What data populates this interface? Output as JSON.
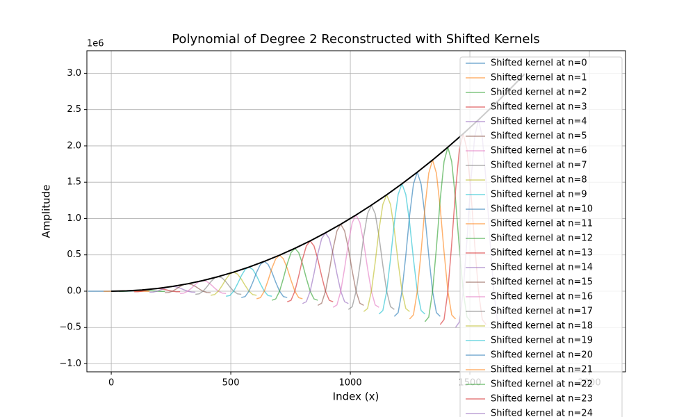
{
  "chart_data": {
    "type": "line",
    "title": "Polynomial of Degree 2 Reconstructed with Shifted Kernels",
    "x_label": "Index (x)",
    "y_label": "Amplitude",
    "y_offset_text": "1e6",
    "xlim": [
      -102,
      2151
    ],
    "ylim": [
      -1.11,
      3.31
    ],
    "xticks": [
      0,
      500,
      1000,
      1500,
      2000
    ],
    "yticks": [
      {
        "value": -1,
        "label": "−1.0"
      },
      {
        "value": -0.5,
        "label": "−0.5"
      },
      {
        "value": 0,
        "label": "0.0"
      },
      0.5,
      {
        "value": 1,
        "label": "1.0"
      },
      1.5,
      {
        "value": 2,
        "label": "2.0"
      },
      2.5,
      {
        "value": 3,
        "label": "3.0"
      }
    ],
    "grid": true,
    "legend": "upper right",
    "line_alpha": 0.6,
    "series": [
      {
        "name": "Shifted kernel at n=0",
        "color": "#1f77b4",
        "x": [
          -96,
          -80,
          -64,
          -48,
          -32,
          -16,
          0,
          16,
          32,
          48,
          64,
          80,
          96
        ],
        "values": [
          0,
          0,
          0,
          0,
          0,
          0,
          0,
          0,
          0,
          0,
          0,
          0,
          0
        ]
      },
      {
        "name": "Shifted kernel at n=1",
        "color": "#ff7f0e",
        "x": [
          -32,
          -16,
          0,
          16,
          32,
          48,
          64,
          80,
          96,
          112,
          128,
          144,
          160
        ],
        "values": [
          -0.001,
          -0.001,
          0,
          0.001,
          0.003,
          0.004,
          0.004,
          0.004,
          0.003,
          0.001,
          0,
          -0.001,
          -0.001
        ]
      },
      {
        "name": "Shifted kernel at n=2",
        "color": "#2ca02c",
        "x": [
          32,
          48,
          64,
          80,
          96,
          112,
          128,
          144,
          160,
          176,
          192,
          208,
          224
        ],
        "values": [
          -0.003,
          -0.003,
          0,
          0.005,
          0.01,
          0.014,
          0.016,
          0.014,
          0.01,
          0.005,
          0,
          -0.003,
          -0.003
        ]
      },
      {
        "name": "Shifted kernel at n=3",
        "color": "#d62728",
        "x": [
          96,
          112,
          128,
          144,
          160,
          176,
          192,
          208,
          224,
          240,
          256,
          272,
          288
        ],
        "values": [
          -0.008,
          -0.007,
          0,
          0.011,
          0.024,
          0.033,
          0.037,
          0.033,
          0.024,
          0.011,
          0,
          -0.007,
          -0.008
        ]
      },
      {
        "name": "Shifted kernel at n=4",
        "color": "#9467bd",
        "x": [
          160,
          176,
          192,
          208,
          224,
          240,
          256,
          272,
          288,
          304,
          320,
          336,
          352
        ],
        "values": [
          -0.014,
          -0.012,
          0,
          0.02,
          0.042,
          0.059,
          0.066,
          0.059,
          0.042,
          0.02,
          0,
          -0.012,
          -0.014
        ]
      },
      {
        "name": "Shifted kernel at n=5",
        "color": "#8c564b",
        "x": [
          224,
          240,
          256,
          272,
          288,
          304,
          320,
          336,
          352,
          368,
          384,
          400,
          416
        ],
        "values": [
          -0.022,
          -0.018,
          0,
          0.031,
          0.065,
          0.092,
          0.102,
          0.092,
          0.065,
          0.031,
          0,
          -0.018,
          -0.022
        ]
      },
      {
        "name": "Shifted kernel at n=6",
        "color": "#e377c2",
        "x": [
          288,
          304,
          320,
          336,
          352,
          368,
          384,
          400,
          416,
          432,
          448,
          464,
          480
        ],
        "values": [
          -0.031,
          -0.026,
          0,
          0.044,
          0.094,
          0.132,
          0.147,
          0.132,
          0.094,
          0.044,
          0,
          -0.026,
          -0.031
        ]
      },
      {
        "name": "Shifted kernel at n=7",
        "color": "#7f7f7f",
        "x": [
          352,
          368,
          384,
          400,
          416,
          432,
          448,
          464,
          480,
          496,
          512,
          528,
          544
        ],
        "values": [
          -0.043,
          -0.036,
          0,
          0.06,
          0.128,
          0.181,
          0.201,
          0.181,
          0.128,
          0.06,
          0,
          -0.036,
          -0.043
        ]
      },
      {
        "name": "Shifted kernel at n=8",
        "color": "#bcbd22",
        "x": [
          416,
          432,
          448,
          464,
          480,
          496,
          512,
          528,
          544,
          560,
          576,
          592,
          608
        ],
        "values": [
          -0.056,
          -0.047,
          0,
          0.079,
          0.167,
          0.236,
          0.262,
          0.236,
          0.167,
          0.079,
          0,
          -0.047,
          -0.056
        ]
      },
      {
        "name": "Shifted kernel at n=9",
        "color": "#17becf",
        "x": [
          480,
          496,
          512,
          528,
          544,
          560,
          576,
          592,
          608,
          624,
          640,
          656,
          672
        ],
        "values": [
          -0.07,
          -0.06,
          0,
          0.1,
          0.211,
          0.299,
          0.332,
          0.299,
          0.211,
          0.1,
          0,
          -0.06,
          -0.07
        ]
      },
      {
        "name": "Shifted kernel at n=10",
        "color": "#1f77b4",
        "x": [
          544,
          560,
          576,
          592,
          608,
          624,
          640,
          656,
          672,
          688,
          704,
          720,
          736
        ],
        "values": [
          -0.087,
          -0.074,
          0,
          0.123,
          0.261,
          0.369,
          0.41,
          0.369,
          0.261,
          0.123,
          0,
          -0.074,
          -0.087
        ]
      },
      {
        "name": "Shifted kernel at n=11",
        "color": "#ff7f0e",
        "x": [
          608,
          624,
          640,
          656,
          672,
          688,
          704,
          720,
          736,
          752,
          768,
          784,
          800
        ],
        "values": [
          -0.105,
          -0.089,
          0,
          0.149,
          0.316,
          0.446,
          0.496,
          0.446,
          0.316,
          0.149,
          0,
          -0.089,
          -0.105
        ]
      },
      {
        "name": "Shifted kernel at n=12",
        "color": "#2ca02c",
        "x": [
          672,
          688,
          704,
          720,
          736,
          752,
          768,
          784,
          800,
          816,
          832,
          848,
          864
        ],
        "values": [
          -0.125,
          -0.106,
          0,
          0.177,
          0.376,
          0.531,
          0.59,
          0.531,
          0.376,
          0.177,
          0,
          -0.106,
          -0.125
        ]
      },
      {
        "name": "Shifted kernel at n=13",
        "color": "#d62728",
        "x": [
          736,
          752,
          768,
          784,
          800,
          816,
          832,
          848,
          864,
          880,
          896,
          912,
          928
        ],
        "values": [
          -0.147,
          -0.125,
          0,
          0.208,
          0.441,
          0.623,
          0.692,
          0.623,
          0.441,
          0.208,
          0,
          -0.125,
          -0.147
        ]
      },
      {
        "name": "Shifted kernel at n=14",
        "color": "#9467bd",
        "x": [
          800,
          816,
          832,
          848,
          864,
          880,
          896,
          912,
          928,
          944,
          960,
          976,
          992
        ],
        "values": [
          -0.17,
          -0.145,
          0,
          0.241,
          0.512,
          0.723,
          0.803,
          0.723,
          0.512,
          0.241,
          0,
          -0.145,
          -0.17
        ]
      },
      {
        "name": "Shifted kernel at n=15",
        "color": "#8c564b",
        "x": [
          864,
          880,
          896,
          912,
          928,
          944,
          960,
          976,
          992,
          1008,
          1024,
          1040,
          1056
        ],
        "values": [
          -0.195,
          -0.166,
          0,
          0.277,
          0.587,
          0.83,
          0.922,
          0.83,
          0.587,
          0.277,
          0,
          -0.166,
          -0.195
        ]
      },
      {
        "name": "Shifted kernel at n=16",
        "color": "#e377c2",
        "x": [
          928,
          944,
          960,
          976,
          992,
          1008,
          1024,
          1040,
          1056,
          1072,
          1088,
          1104,
          1120
        ],
        "values": [
          -0.222,
          -0.189,
          0,
          0.315,
          0.668,
          0.944,
          1.049,
          0.944,
          0.668,
          0.315,
          0,
          -0.189,
          -0.222
        ]
      },
      {
        "name": "Shifted kernel at n=17",
        "color": "#7f7f7f",
        "x": [
          992,
          1008,
          1024,
          1040,
          1056,
          1072,
          1088,
          1104,
          1120,
          1136,
          1152,
          1168,
          1184
        ],
        "values": [
          -0.251,
          -0.213,
          0,
          0.355,
          0.754,
          1.066,
          1.184,
          1.066,
          0.754,
          0.355,
          0,
          -0.213,
          -0.251
        ]
      },
      {
        "name": "Shifted kernel at n=18",
        "color": "#bcbd22",
        "x": [
          1056,
          1072,
          1088,
          1104,
          1120,
          1136,
          1152,
          1168,
          1184,
          1200,
          1216,
          1232,
          1248
        ],
        "values": [
          -0.281,
          -0.239,
          0,
          0.398,
          0.845,
          1.194,
          1.327,
          1.194,
          0.845,
          0.398,
          0,
          -0.239,
          -0.281
        ]
      },
      {
        "name": "Shifted kernel at n=19",
        "color": "#17becf",
        "x": [
          1120,
          1136,
          1152,
          1168,
          1184,
          1200,
          1216,
          1232,
          1248,
          1264,
          1280,
          1296,
          1312
        ],
        "values": [
          -0.314,
          -0.266,
          0,
          0.444,
          0.942,
          1.331,
          1.479,
          1.331,
          0.942,
          0.444,
          0,
          -0.266,
          -0.314
        ]
      },
      {
        "name": "Shifted kernel at n=20",
        "color": "#1f77b4",
        "x": [
          1184,
          1200,
          1216,
          1232,
          1248,
          1264,
          1280,
          1296,
          1312,
          1328,
          1344,
          1360,
          1376
        ],
        "values": [
          -0.347,
          -0.295,
          0,
          0.491,
          1.043,
          1.474,
          1.638,
          1.474,
          1.043,
          0.491,
          0,
          -0.295,
          -0.347
        ]
      },
      {
        "name": "Shifted kernel at n=21",
        "color": "#ff7f0e",
        "x": [
          1248,
          1264,
          1280,
          1296,
          1312,
          1328,
          1344,
          1360,
          1376,
          1392,
          1408,
          1424,
          1440
        ],
        "values": [
          -0.383,
          -0.325,
          0,
          0.542,
          1.15,
          1.625,
          1.806,
          1.625,
          1.15,
          0.542,
          0,
          -0.325,
          -0.383
        ]
      },
      {
        "name": "Shifted kernel at n=22",
        "color": "#2ca02c",
        "x": [
          1312,
          1328,
          1344,
          1360,
          1376,
          1392,
          1408,
          1424,
          1440,
          1456,
          1472,
          1488,
          1504
        ],
        "values": [
          -0.42,
          -0.357,
          0,
          0.595,
          1.263,
          1.784,
          1.982,
          1.784,
          1.263,
          0.595,
          0,
          -0.357,
          -0.42
        ]
      },
      {
        "name": "Shifted kernel at n=23",
        "color": "#d62728",
        "x": [
          1376,
          1392,
          1408,
          1424,
          1440,
          1456,
          1472,
          1488,
          1504,
          1520,
          1536,
          1552,
          1568
        ],
        "values": [
          -0.459,
          -0.39,
          0,
          0.65,
          1.38,
          1.95,
          2.167,
          1.95,
          1.38,
          0.65,
          0,
          -0.39,
          -0.459
        ]
      },
      {
        "name": "Shifted kernel at n=24",
        "color": "#9467bd",
        "x": [
          1440,
          1456,
          1472,
          1488,
          1504,
          1520,
          1536,
          1552,
          1568,
          1584,
          1600,
          1616,
          1632
        ],
        "values": [
          -0.5,
          -0.425,
          0,
          0.708,
          1.503,
          2.123,
          2.359,
          2.123,
          1.503,
          0.708,
          0,
          -0.425,
          -0.5
        ]
      }
    ],
    "curve": {
      "color": "#000000",
      "x": [
        0,
        64,
        128,
        192,
        256,
        320,
        384,
        448,
        512,
        576,
        640,
        704,
        768,
        832,
        896,
        960,
        1024,
        1088,
        1152,
        1216,
        1280,
        1344,
        1408,
        1472,
        1536,
        1600,
        1664,
        1728
      ],
      "values": [
        0,
        0.004,
        0.016,
        0.037,
        0.066,
        0.102,
        0.147,
        0.201,
        0.262,
        0.332,
        0.41,
        0.496,
        0.59,
        0.692,
        0.803,
        0.922,
        1.049,
        1.184,
        1.327,
        1.479,
        1.638,
        1.806,
        1.982,
        2.167,
        2.359,
        2.56,
        2.769,
        2.986
      ]
    }
  }
}
